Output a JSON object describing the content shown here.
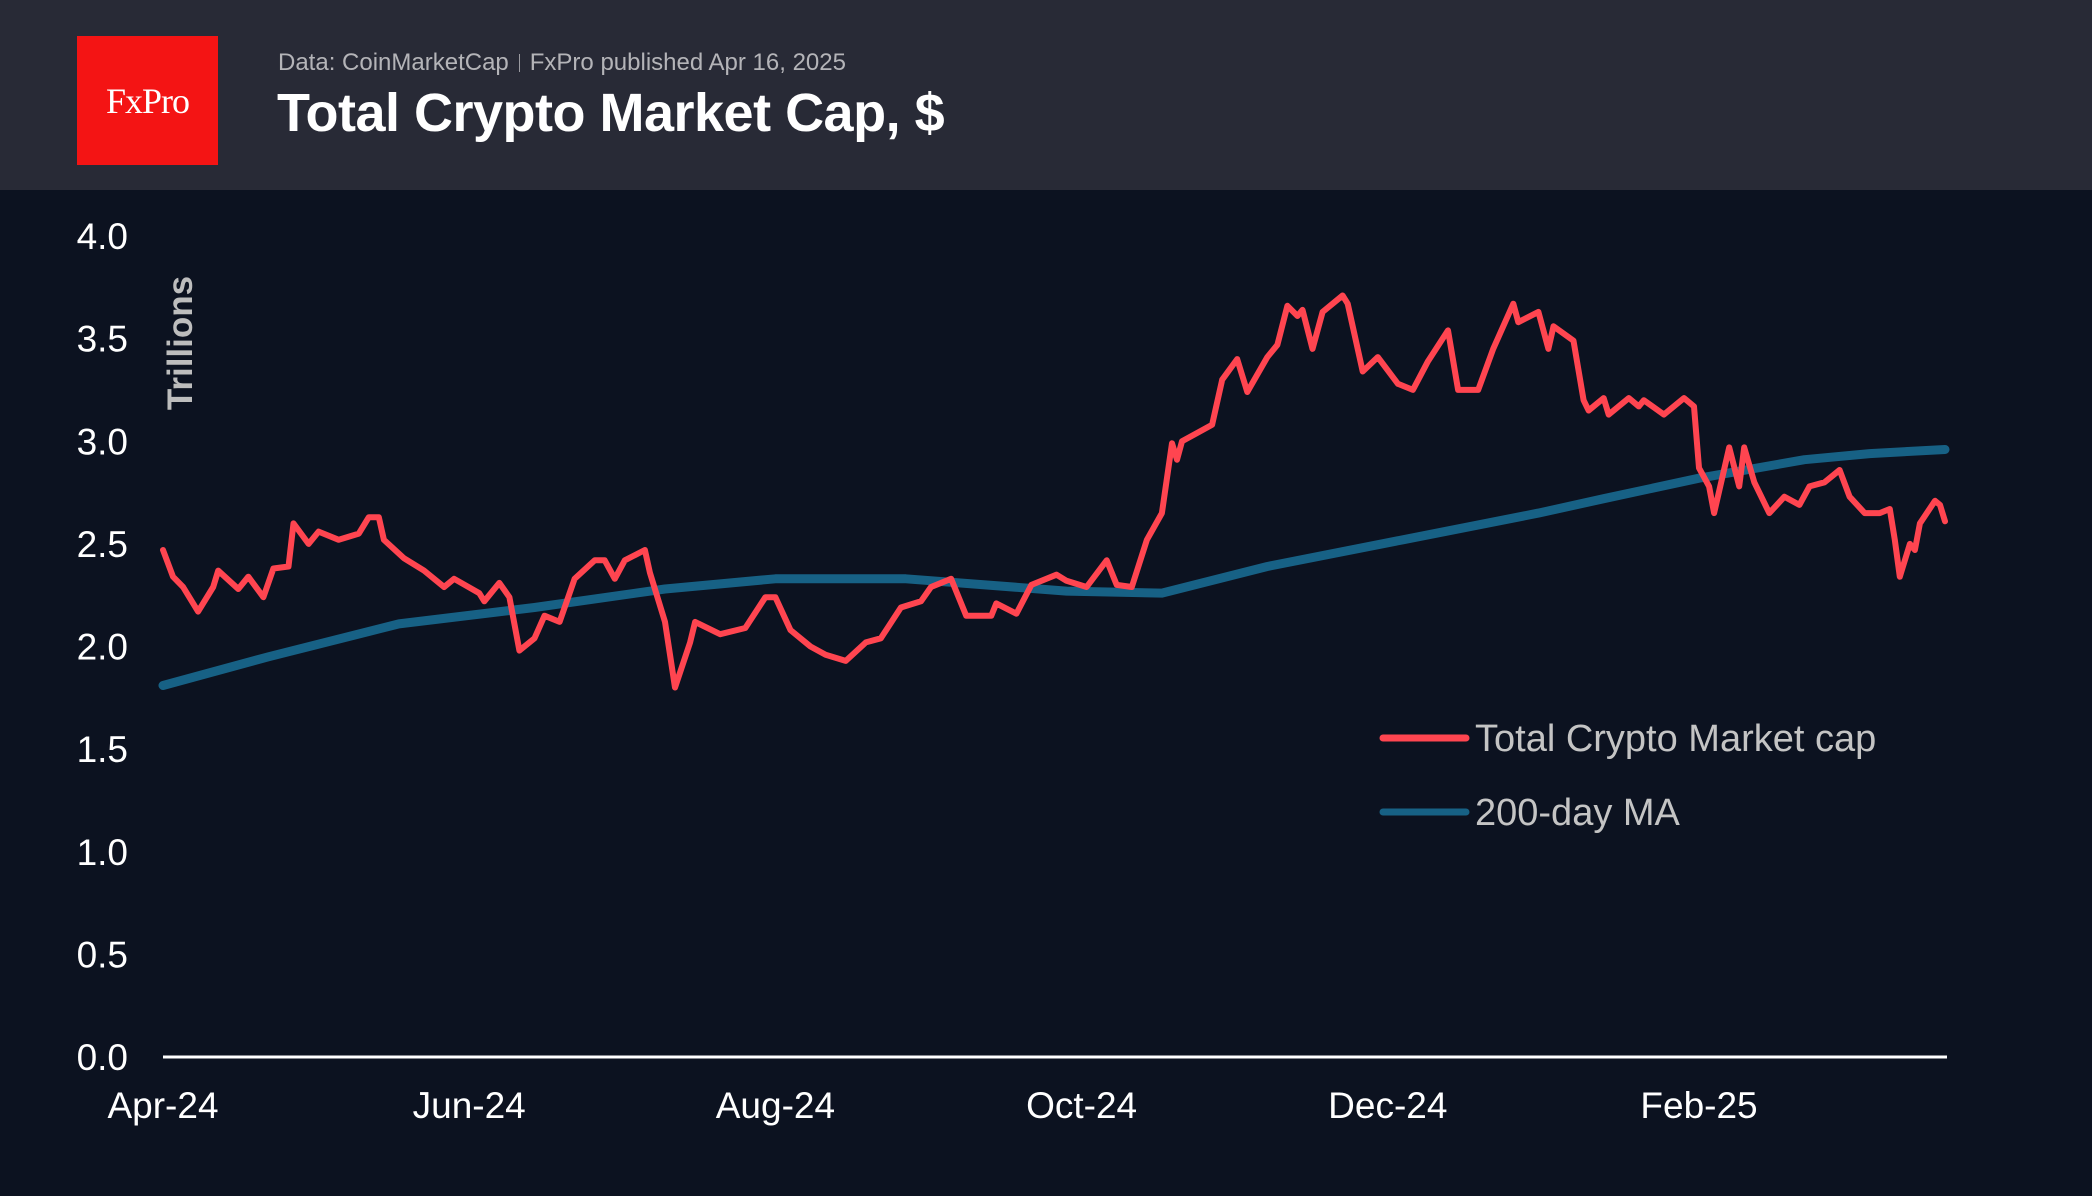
{
  "header": {
    "logo_text": "FxPro",
    "source": "Data: CoinMarketCap",
    "published": "FxPro published Apr 16, 2025",
    "title": "Total Crypto Market Cap, $"
  },
  "colors": {
    "header_bg": "#282a36",
    "plot_bg": "#0c1220",
    "logo": "#f41414",
    "market_cap": "#ff4550",
    "ma": "#176185"
  },
  "chart_data": {
    "type": "line",
    "title": "Total Crypto Market Cap, $",
    "ylabel": "Trillions",
    "xlabel": "",
    "ylim": [
      0,
      4.0
    ],
    "yticks": [
      "0.0",
      "0.5",
      "1.0",
      "1.5",
      "2.0",
      "2.5",
      "3.0",
      "3.5",
      "4.0"
    ],
    "xticks": [
      {
        "date": "2024-04-01",
        "label": "Apr-24"
      },
      {
        "date": "2024-06-01",
        "label": "Jun-24"
      },
      {
        "date": "2024-08-01",
        "label": "Aug-24"
      },
      {
        "date": "2024-10-01",
        "label": "Oct-24"
      },
      {
        "date": "2024-12-01",
        "label": "Dec-24"
      },
      {
        "date": "2025-02-01",
        "label": "Feb-25"
      }
    ],
    "xlim": [
      "2024-04-01",
      "2025-03-22"
    ],
    "grid": false,
    "legend_position": "right",
    "series": [
      {
        "name": "Total Crypto Market cap",
        "color": "#ff4550",
        "points": [
          [
            "2024-04-01",
            2.47
          ],
          [
            "2024-04-03",
            2.34
          ],
          [
            "2024-04-05",
            2.29
          ],
          [
            "2024-04-08",
            2.17
          ],
          [
            "2024-04-11",
            2.29
          ],
          [
            "2024-04-12",
            2.37
          ],
          [
            "2024-04-16",
            2.28
          ],
          [
            "2024-04-18",
            2.34
          ],
          [
            "2024-04-21",
            2.24
          ],
          [
            "2024-04-23",
            2.38
          ],
          [
            "2024-04-26",
            2.39
          ],
          [
            "2024-04-27",
            2.6
          ],
          [
            "2024-04-30",
            2.5
          ],
          [
            "2024-05-02",
            2.56
          ],
          [
            "2024-05-06",
            2.52
          ],
          [
            "2024-05-10",
            2.55
          ],
          [
            "2024-05-12",
            2.63
          ],
          [
            "2024-05-14",
            2.63
          ],
          [
            "2024-05-15",
            2.52
          ],
          [
            "2024-05-19",
            2.43
          ],
          [
            "2024-05-23",
            2.37
          ],
          [
            "2024-05-27",
            2.29
          ],
          [
            "2024-05-29",
            2.33
          ],
          [
            "2024-06-03",
            2.26
          ],
          [
            "2024-06-04",
            2.22
          ],
          [
            "2024-06-07",
            2.31
          ],
          [
            "2024-06-09",
            2.24
          ],
          [
            "2024-06-11",
            1.98
          ],
          [
            "2024-06-14",
            2.04
          ],
          [
            "2024-06-16",
            2.15
          ],
          [
            "2024-06-19",
            2.12
          ],
          [
            "2024-06-22",
            2.33
          ],
          [
            "2024-06-26",
            2.42
          ],
          [
            "2024-06-28",
            2.42
          ],
          [
            "2024-06-30",
            2.33
          ],
          [
            "2024-07-02",
            2.42
          ],
          [
            "2024-07-06",
            2.47
          ],
          [
            "2024-07-07",
            2.36
          ],
          [
            "2024-07-10",
            2.12
          ],
          [
            "2024-07-12",
            1.8
          ],
          [
            "2024-07-15",
            2.02
          ],
          [
            "2024-07-16",
            2.12
          ],
          [
            "2024-07-21",
            2.06
          ],
          [
            "2024-07-26",
            2.09
          ],
          [
            "2024-07-30",
            2.24
          ],
          [
            "2024-08-01",
            2.24
          ],
          [
            "2024-08-04",
            2.08
          ],
          [
            "2024-08-08",
            2.0
          ],
          [
            "2024-08-11",
            1.96
          ],
          [
            "2024-08-15",
            1.93
          ],
          [
            "2024-08-19",
            2.02
          ],
          [
            "2024-08-22",
            2.04
          ],
          [
            "2024-08-26",
            2.19
          ],
          [
            "2024-08-30",
            2.22
          ],
          [
            "2024-09-01",
            2.29
          ],
          [
            "2024-09-05",
            2.33
          ],
          [
            "2024-09-08",
            2.15
          ],
          [
            "2024-09-13",
            2.15
          ],
          [
            "2024-09-14",
            2.21
          ],
          [
            "2024-09-18",
            2.16
          ],
          [
            "2024-09-21",
            2.3
          ],
          [
            "2024-09-26",
            2.35
          ],
          [
            "2024-09-28",
            2.32
          ],
          [
            "2024-10-02",
            2.29
          ],
          [
            "2024-10-06",
            2.42
          ],
          [
            "2024-10-08",
            2.3
          ],
          [
            "2024-10-11",
            2.29
          ],
          [
            "2024-10-14",
            2.52
          ],
          [
            "2024-10-17",
            2.65
          ],
          [
            "2024-10-19",
            2.99
          ],
          [
            "2024-10-20",
            2.91
          ],
          [
            "2024-10-21",
            3.0
          ],
          [
            "2024-10-24",
            3.04
          ],
          [
            "2024-10-27",
            3.08
          ],
          [
            "2024-10-29",
            3.3
          ],
          [
            "2024-11-01",
            3.4
          ],
          [
            "2024-11-03",
            3.24
          ],
          [
            "2024-11-07",
            3.41
          ],
          [
            "2024-11-09",
            3.47
          ],
          [
            "2024-11-11",
            3.66
          ],
          [
            "2024-11-13",
            3.61
          ],
          [
            "2024-11-14",
            3.64
          ],
          [
            "2024-11-16",
            3.45
          ],
          [
            "2024-11-18",
            3.63
          ],
          [
            "2024-11-22",
            3.71
          ],
          [
            "2024-11-23",
            3.67
          ],
          [
            "2024-11-26",
            3.34
          ],
          [
            "2024-11-29",
            3.41
          ],
          [
            "2024-12-03",
            3.28
          ],
          [
            "2024-12-06",
            3.25
          ],
          [
            "2024-12-09",
            3.39
          ],
          [
            "2024-12-13",
            3.54
          ],
          [
            "2024-12-15",
            3.25
          ],
          [
            "2024-12-19",
            3.25
          ],
          [
            "2024-12-22",
            3.45
          ],
          [
            "2024-12-26",
            3.67
          ],
          [
            "2024-12-27",
            3.58
          ],
          [
            "2024-12-31",
            3.63
          ],
          [
            "2025-01-02",
            3.45
          ],
          [
            "2025-01-03",
            3.56
          ],
          [
            "2025-01-07",
            3.49
          ],
          [
            "2025-01-09",
            3.2
          ],
          [
            "2025-01-10",
            3.15
          ],
          [
            "2025-01-13",
            3.21
          ],
          [
            "2025-01-14",
            3.13
          ],
          [
            "2025-01-18",
            3.21
          ],
          [
            "2025-01-20",
            3.17
          ],
          [
            "2025-01-21",
            3.2
          ],
          [
            "2025-01-25",
            3.13
          ],
          [
            "2025-01-29",
            3.21
          ],
          [
            "2025-01-31",
            3.17
          ],
          [
            "2025-02-01",
            2.87
          ],
          [
            "2025-02-03",
            2.78
          ],
          [
            "2025-02-04",
            2.65
          ],
          [
            "2025-02-07",
            2.97
          ],
          [
            "2025-02-09",
            2.78
          ],
          [
            "2025-02-10",
            2.97
          ],
          [
            "2025-02-12",
            2.8
          ],
          [
            "2025-02-15",
            2.65
          ],
          [
            "2025-02-18",
            2.73
          ],
          [
            "2025-02-21",
            2.69
          ],
          [
            "2025-02-23",
            2.78
          ],
          [
            "2025-02-26",
            2.8
          ],
          [
            "2025-03-01",
            2.86
          ],
          [
            "2025-03-03",
            2.73
          ],
          [
            "2025-03-06",
            2.65
          ],
          [
            "2025-03-09",
            2.65
          ],
          [
            "2025-03-11",
            2.67
          ],
          [
            "2025-03-12",
            2.52
          ],
          [
            "2025-03-13",
            2.34
          ],
          [
            "2025-03-15",
            2.5
          ],
          [
            "2025-03-16",
            2.47
          ],
          [
            "2025-03-17",
            2.6
          ],
          [
            "2025-03-20",
            2.71
          ],
          [
            "2025-03-21",
            2.69
          ],
          [
            "2025-03-22",
            2.61
          ]
        ]
      },
      {
        "name": "200-day MA",
        "color": "#176185",
        "points": [
          [
            "2024-04-01",
            1.81
          ],
          [
            "2024-04-22",
            1.95
          ],
          [
            "2024-05-18",
            2.11
          ],
          [
            "2024-06-14",
            2.19
          ],
          [
            "2024-07-10",
            2.28
          ],
          [
            "2024-08-01",
            2.33
          ],
          [
            "2024-08-27",
            2.33
          ],
          [
            "2024-09-28",
            2.27
          ],
          [
            "2024-10-17",
            2.26
          ],
          [
            "2024-11-07",
            2.39
          ],
          [
            "2024-12-04",
            2.52
          ],
          [
            "2024-12-31",
            2.65
          ],
          [
            "2025-01-13",
            2.72
          ],
          [
            "2025-02-01",
            2.82
          ],
          [
            "2025-02-22",
            2.91
          ],
          [
            "2025-03-07",
            2.94
          ],
          [
            "2025-03-22",
            2.96
          ]
        ]
      }
    ]
  }
}
